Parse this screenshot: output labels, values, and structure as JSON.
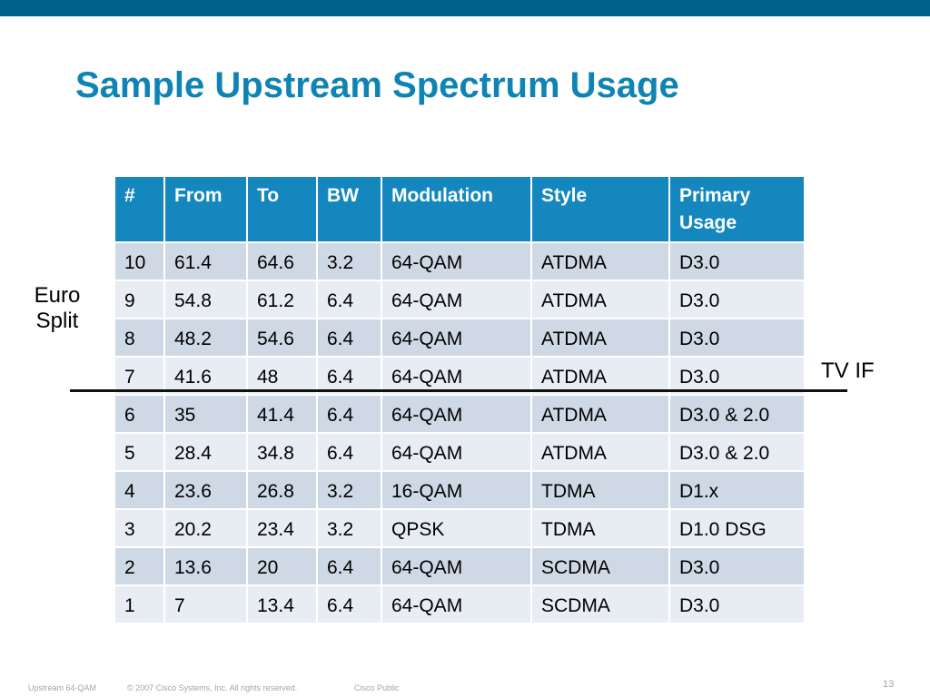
{
  "slide": {
    "title": "Sample Upstream Spectrum Usage",
    "accent_color": "#00628b",
    "title_color": "#0f84b4",
    "header_color": "#1487bf"
  },
  "table": {
    "headers": [
      "#",
      "From",
      "To",
      "BW",
      "Modulation",
      "Style",
      "Primary Usage"
    ],
    "rows": [
      [
        "10",
        "61.4",
        "64.6",
        "3.2",
        "64-QAM",
        "ATDMA",
        "D3.0"
      ],
      [
        "9",
        "54.8",
        "61.2",
        "6.4",
        "64-QAM",
        "ATDMA",
        "D3.0"
      ],
      [
        "8",
        "48.2",
        "54.6",
        "6.4",
        "64-QAM",
        "ATDMA",
        "D3.0"
      ],
      [
        "7",
        "41.6",
        "48",
        "6.4",
        "64-QAM",
        "ATDMA",
        "D3.0"
      ],
      [
        "6",
        "35",
        "41.4",
        "6.4",
        "64-QAM",
        "ATDMA",
        "D3.0 & 2.0"
      ],
      [
        "5",
        "28.4",
        "34.8",
        "6.4",
        "64-QAM",
        "ATDMA",
        "D3.0 & 2.0"
      ],
      [
        "4",
        "23.6",
        "26.8",
        "3.2",
        "16-QAM",
        "TDMA",
        "D1.x"
      ],
      [
        "3",
        "20.2",
        "23.4",
        "3.2",
        "QPSK",
        "TDMA",
        "D1.0 DSG"
      ],
      [
        "2",
        "13.6",
        "20",
        "6.4",
        "64-QAM",
        "SCDMA",
        "D3.0"
      ],
      [
        "1",
        "7",
        "13.4",
        "6.4",
        "64-QAM",
        "SCDMA",
        "D3.0"
      ]
    ]
  },
  "labels": {
    "euro_split": "Euro Split",
    "tv_if": "TV IF"
  },
  "footer": {
    "left": "Upstream 64-QAM",
    "copyright": "© 2007 Cisco Systems, Inc. All rights reserved.",
    "classification": "Cisco Public",
    "page_number": "13"
  }
}
